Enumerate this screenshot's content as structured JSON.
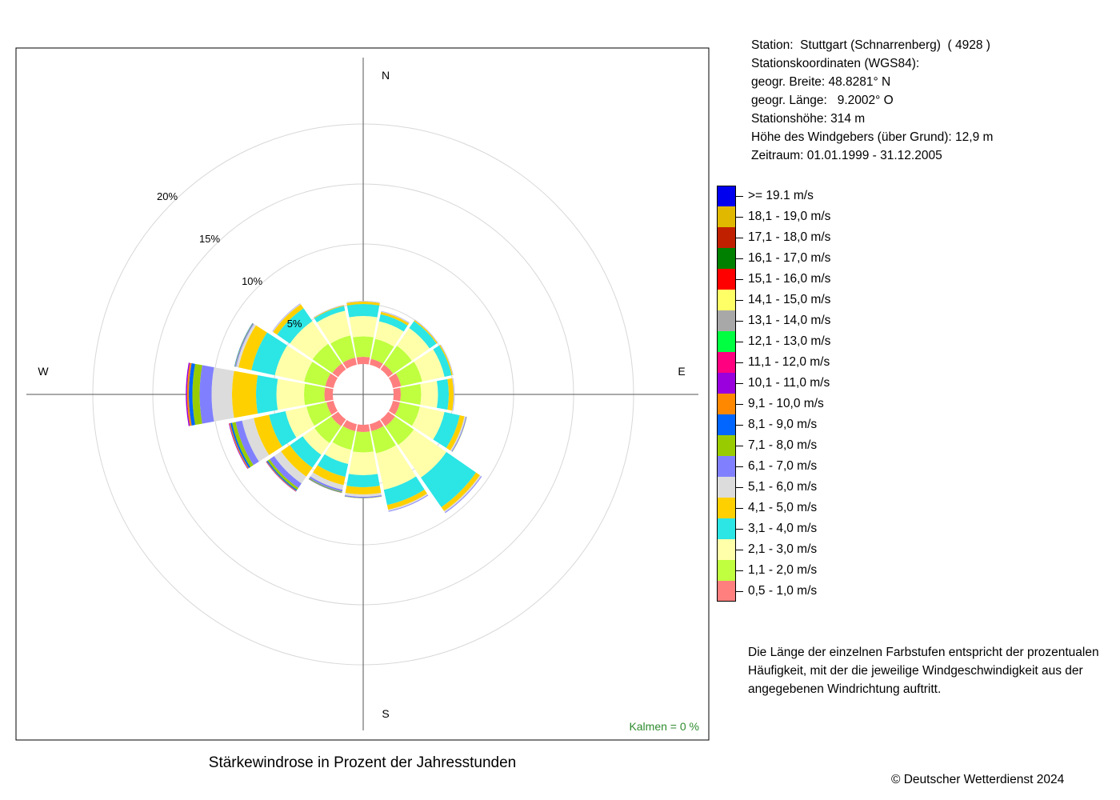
{
  "station": {
    "name_line": "Station:  Stuttgart (Schnarrenberg)  ( 4928 )",
    "coords_line": "Stationskoordinaten (WGS84):",
    "lat_line": "geogr. Breite: 48.8281° N",
    "lon_line": "geogr. Länge:   9.2002° O",
    "height_line": "Stationshöhe: 314 m",
    "sensor_line": "Höhe des Windgebers (über Grund): 12,9 m",
    "period_line": "Zeitraum: 01.01.1999 - 31.12.2005"
  },
  "note": "Die Länge der einzelnen Farbstufen entspricht der prozentualen Häufigkeit, mit der die jeweilige Windgeschwindigkeit aus der angegebenen Windrichtung auftritt.",
  "footer": {
    "title": "Stärkewindrose in Prozent der Jahresstunden",
    "copyright": "© Deutscher Wetterdienst  2024"
  },
  "chart_data": {
    "type": "windrose",
    "title": "Stärkewindrose in Prozent der Jahresstunden",
    "unit": "%",
    "directions": [
      "N",
      "NNE",
      "NE",
      "ENE",
      "E",
      "ESE",
      "SE",
      "SSE",
      "S",
      "SSW",
      "SW",
      "WSW",
      "W",
      "WNW",
      "NW",
      "NNW"
    ],
    "compass_labels": [
      "N",
      "E",
      "S",
      "W"
    ],
    "rings": [
      {
        "value": 5,
        "label": "5%"
      },
      {
        "value": 10,
        "label": "10%"
      },
      {
        "value": 15,
        "label": "15%"
      },
      {
        "value": 20,
        "label": "20%"
      }
    ],
    "rlim": [
      0,
      20
    ],
    "calms_label": "Kalmen  =  0 %",
    "calms_value": 0,
    "bins": [
      {
        "label": "0,5 - 1,0 m/s",
        "color": "#ff7f7f"
      },
      {
        "label": "1,1 - 2,0 m/s",
        "color": "#bfff3f"
      },
      {
        "label": "2,1 - 3,0 m/s",
        "color": "#ffffaa"
      },
      {
        "label": "3,1 - 4,0 m/s",
        "color": "#2ce5e5"
      },
      {
        "label": "4,1 - 5,0 m/s",
        "color": "#ffd000"
      },
      {
        "label": "5,1 - 6,0 m/s",
        "color": "#dcdcdc"
      },
      {
        "label": "6,1 - 7,0 m/s",
        "color": "#8080ff"
      },
      {
        "label": "7,1 - 8,0 m/s",
        "color": "#99cc00"
      },
      {
        "label": "8,1 - 9,0 m/s",
        "color": "#0066ff"
      },
      {
        "label": "9,1 - 10,0 m/s",
        "color": "#ff8800"
      },
      {
        "label": "10,1 - 11,0 m/s",
        "color": "#9900dd"
      },
      {
        "label": "11,1 - 12,0 m/s",
        "color": "#ff0080"
      },
      {
        "label": "12,1 - 13,0 m/s",
        "color": "#00ff40"
      },
      {
        "label": "13,1 - 14,0 m/s",
        "color": "#a8a8a8"
      },
      {
        "label": "14,1 - 15,0 m/s",
        "color": "#ffff66"
      },
      {
        "label": "15,1 - 16,0 m/s",
        "color": "#ff0000"
      },
      {
        "label": "16,1 - 17,0 m/s",
        "color": "#008000"
      },
      {
        "label": "17,1 - 18,0 m/s",
        "color": "#c02000"
      },
      {
        "label": "18,1 - 19,0 m/s",
        "color": "#e0b800"
      },
      {
        "label": ">= 19.1 m/s",
        "color": "#0000ee"
      }
    ],
    "values": [
      [
        0.6,
        0.5,
        0.5,
        0.7,
        0.6,
        0.6,
        0.7,
        0.6,
        0.6,
        0.6,
        0.7,
        0.6,
        0.7,
        0.7,
        0.6,
        0.6
      ],
      [
        1.7,
        1.7,
        1.9,
        1.8,
        1.7,
        1.7,
        1.9,
        1.9,
        1.7,
        1.6,
        1.7,
        1.7,
        1.7,
        1.8,
        2.0,
        1.9
      ],
      [
        1.7,
        1.5,
        1.8,
        1.9,
        1.4,
        2.1,
        3.3,
        3.1,
        1.9,
        1.2,
        1.2,
        1.8,
        2.3,
        2.5,
        2.3,
        2.1
      ],
      [
        1.0,
        0.6,
        0.7,
        0.6,
        0.9,
        1.3,
        3.0,
        1.3,
        1.0,
        1.1,
        1.3,
        1.4,
        1.7,
        2.0,
        1.3,
        0.4
      ],
      [
        0.2,
        0.2,
        0.1,
        0.1,
        0.4,
        0.4,
        0.4,
        0.4,
        0.6,
        0.7,
        0.9,
        1.3,
        2.0,
        1.1,
        0.4,
        0.06
      ],
      [
        0.04,
        0.05,
        0.03,
        0.03,
        0.05,
        0.12,
        0.12,
        0.12,
        0.2,
        0.4,
        0.7,
        1.0,
        1.7,
        0.2,
        0.06,
        0.02
      ],
      [
        0.02,
        0.03,
        0.02,
        0.02,
        0.03,
        0.07,
        0.07,
        0.06,
        0.1,
        0.15,
        0.45,
        0.55,
        1.0,
        0.08,
        0.03,
        0.02
      ],
      [
        0.0,
        0.0,
        0.0,
        0.0,
        0.0,
        0.02,
        0.0,
        0.0,
        0.02,
        0.06,
        0.2,
        0.3,
        0.6,
        0.04,
        0.0,
        0.0
      ],
      [
        0.0,
        0.0,
        0.0,
        0.0,
        0.0,
        0.0,
        0.0,
        0.0,
        0.0,
        0.04,
        0.1,
        0.15,
        0.3,
        0.03,
        0.0,
        0.0
      ],
      [
        0.0,
        0.0,
        0.0,
        0.0,
        0.0,
        0.0,
        0.0,
        0.0,
        0.0,
        0.02,
        0.05,
        0.08,
        0.15,
        0.0,
        0.0,
        0.0
      ],
      [
        0.0,
        0.0,
        0.0,
        0.0,
        0.0,
        0.0,
        0.0,
        0.0,
        0.0,
        0.0,
        0.03,
        0.05,
        0.1,
        0.0,
        0.0,
        0.0
      ]
    ]
  }
}
